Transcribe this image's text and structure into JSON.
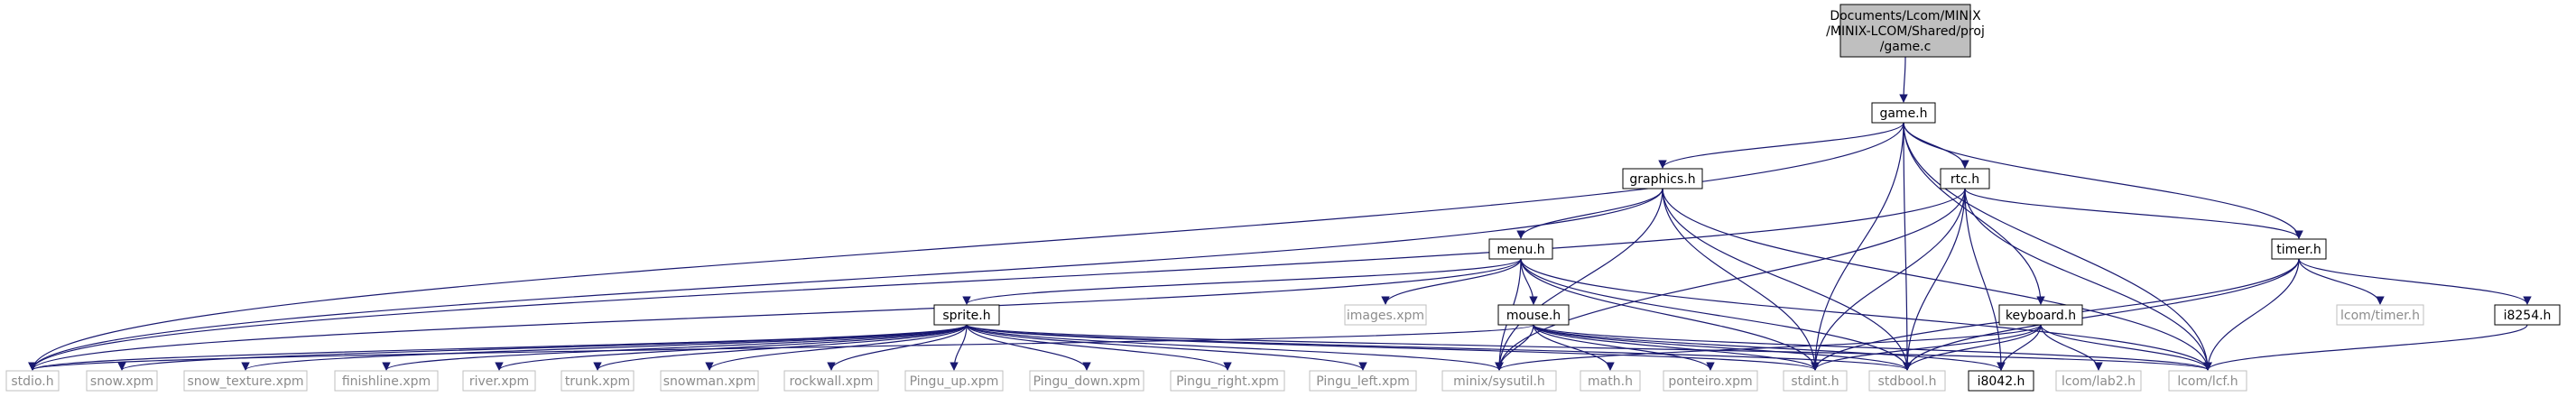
{
  "diagram": {
    "type": "include-dependency-graph",
    "root": {
      "id": "game_c",
      "lines": [
        "Documents/Lcom/MINIX",
        "/MINIX-LCOM/Shared/proj",
        "/game.c"
      ]
    },
    "nodes": [
      {
        "id": "game_h",
        "label": "game.h",
        "style": "normal"
      },
      {
        "id": "graphics_h",
        "label": "graphics.h",
        "style": "normal"
      },
      {
        "id": "rtc_h",
        "label": "rtc.h",
        "style": "normal"
      },
      {
        "id": "menu_h",
        "label": "menu.h",
        "style": "normal"
      },
      {
        "id": "timer_h",
        "label": "timer.h",
        "style": "normal"
      },
      {
        "id": "images_xpm",
        "label": "images.xpm",
        "style": "gray"
      },
      {
        "id": "mouse_h",
        "label": "mouse.h",
        "style": "normal"
      },
      {
        "id": "keyboard_h",
        "label": "keyboard.h",
        "style": "normal"
      },
      {
        "id": "lcom_timer_h",
        "label": "lcom/timer.h",
        "style": "gray"
      },
      {
        "id": "i8254_h",
        "label": "i8254.h",
        "style": "normal"
      },
      {
        "id": "sprite_h",
        "label": "sprite.h",
        "style": "normal"
      },
      {
        "id": "stdio_h",
        "label": "stdio.h",
        "style": "gray"
      },
      {
        "id": "snow_xpm",
        "label": "snow.xpm",
        "style": "gray"
      },
      {
        "id": "snow_texture_xpm",
        "label": "snow_texture.xpm",
        "style": "gray"
      },
      {
        "id": "finishline_xpm",
        "label": "finishline.xpm",
        "style": "gray"
      },
      {
        "id": "river_xpm",
        "label": "river.xpm",
        "style": "gray"
      },
      {
        "id": "trunk_xpm",
        "label": "trunk.xpm",
        "style": "gray"
      },
      {
        "id": "snowman_xpm",
        "label": "snowman.xpm",
        "style": "gray"
      },
      {
        "id": "rockwall_xpm",
        "label": "rockwall.xpm",
        "style": "gray"
      },
      {
        "id": "pingu_up_xpm",
        "label": "Pingu_up.xpm",
        "style": "gray"
      },
      {
        "id": "pingu_down_xpm",
        "label": "Pingu_down.xpm",
        "style": "gray"
      },
      {
        "id": "pingu_right_xpm",
        "label": "Pingu_right.xpm",
        "style": "gray"
      },
      {
        "id": "pingu_left_xpm",
        "label": "Pingu_left.xpm",
        "style": "gray"
      },
      {
        "id": "minix_sysutil_h",
        "label": "minix/sysutil.h",
        "style": "gray"
      },
      {
        "id": "math_h",
        "label": "math.h",
        "style": "gray"
      },
      {
        "id": "ponteiro_xpm",
        "label": "ponteiro.xpm",
        "style": "gray"
      },
      {
        "id": "stdint_h",
        "label": "stdint.h",
        "style": "gray"
      },
      {
        "id": "stdbool_h",
        "label": "stdbool.h",
        "style": "gray"
      },
      {
        "id": "i8042_h",
        "label": "i8042.h",
        "style": "normal"
      },
      {
        "id": "lcom_lab2_h",
        "label": "lcom/lab2.h",
        "style": "gray"
      },
      {
        "id": "lcom_lcf_h",
        "label": "lcom/lcf.h",
        "style": "gray"
      }
    ],
    "edges": [
      [
        "game_c",
        "game_h"
      ],
      [
        "game_h",
        "graphics_h"
      ],
      [
        "game_h",
        "rtc_h"
      ],
      [
        "game_h",
        "timer_h"
      ],
      [
        "game_h",
        "keyboard_h"
      ],
      [
        "game_h",
        "stdio_h"
      ],
      [
        "game_h",
        "stdint_h"
      ],
      [
        "game_h",
        "stdbool_h"
      ],
      [
        "game_h",
        "lcom_lcf_h"
      ],
      [
        "graphics_h",
        "menu_h"
      ],
      [
        "graphics_h",
        "stdio_h"
      ],
      [
        "graphics_h",
        "minix_sysutil_h"
      ],
      [
        "graphics_h",
        "stdint_h"
      ],
      [
        "graphics_h",
        "stdbool_h"
      ],
      [
        "graphics_h",
        "lcom_lcf_h"
      ],
      [
        "rtc_h",
        "timer_h"
      ],
      [
        "rtc_h",
        "stdio_h"
      ],
      [
        "rtc_h",
        "minix_sysutil_h"
      ],
      [
        "rtc_h",
        "stdint_h"
      ],
      [
        "rtc_h",
        "stdbool_h"
      ],
      [
        "rtc_h",
        "lcom_lcf_h"
      ],
      [
        "rtc_h",
        "i8042_h"
      ],
      [
        "menu_h",
        "sprite_h"
      ],
      [
        "menu_h",
        "images_xpm"
      ],
      [
        "menu_h",
        "mouse_h"
      ],
      [
        "menu_h",
        "stdio_h"
      ],
      [
        "menu_h",
        "minix_sysutil_h"
      ],
      [
        "menu_h",
        "stdint_h"
      ],
      [
        "menu_h",
        "stdbool_h"
      ],
      [
        "menu_h",
        "lcom_lcf_h"
      ],
      [
        "timer_h",
        "lcom_timer_h"
      ],
      [
        "timer_h",
        "i8254_h"
      ],
      [
        "timer_h",
        "stdint_h"
      ],
      [
        "timer_h",
        "stdbool_h"
      ],
      [
        "timer_h",
        "lcom_lcf_h"
      ],
      [
        "i8254_h",
        "lcom_lcf_h"
      ],
      [
        "keyboard_h",
        "i8042_h"
      ],
      [
        "keyboard_h",
        "lcom_lab2_h"
      ],
      [
        "keyboard_h",
        "minix_sysutil_h"
      ],
      [
        "keyboard_h",
        "stdint_h"
      ],
      [
        "keyboard_h",
        "stdbool_h"
      ],
      [
        "keyboard_h",
        "lcom_lcf_h"
      ],
      [
        "mouse_h",
        "stdio_h"
      ],
      [
        "mouse_h",
        "minix_sysutil_h"
      ],
      [
        "mouse_h",
        "math_h"
      ],
      [
        "mouse_h",
        "ponteiro_xpm"
      ],
      [
        "mouse_h",
        "stdint_h"
      ],
      [
        "mouse_h",
        "stdbool_h"
      ],
      [
        "mouse_h",
        "i8042_h"
      ],
      [
        "mouse_h",
        "lcom_lcf_h"
      ],
      [
        "sprite_h",
        "stdio_h"
      ],
      [
        "sprite_h",
        "snow_xpm"
      ],
      [
        "sprite_h",
        "snow_texture_xpm"
      ],
      [
        "sprite_h",
        "finishline_xpm"
      ],
      [
        "sprite_h",
        "river_xpm"
      ],
      [
        "sprite_h",
        "trunk_xpm"
      ],
      [
        "sprite_h",
        "snowman_xpm"
      ],
      [
        "sprite_h",
        "rockwall_xpm"
      ],
      [
        "sprite_h",
        "pingu_up_xpm"
      ],
      [
        "sprite_h",
        "pingu_down_xpm"
      ],
      [
        "sprite_h",
        "pingu_right_xpm"
      ],
      [
        "sprite_h",
        "pingu_left_xpm"
      ],
      [
        "sprite_h",
        "minix_sysutil_h"
      ],
      [
        "sprite_h",
        "stdint_h"
      ],
      [
        "sprite_h",
        "stdbool_h"
      ],
      [
        "sprite_h",
        "lcom_lcf_h"
      ]
    ]
  }
}
